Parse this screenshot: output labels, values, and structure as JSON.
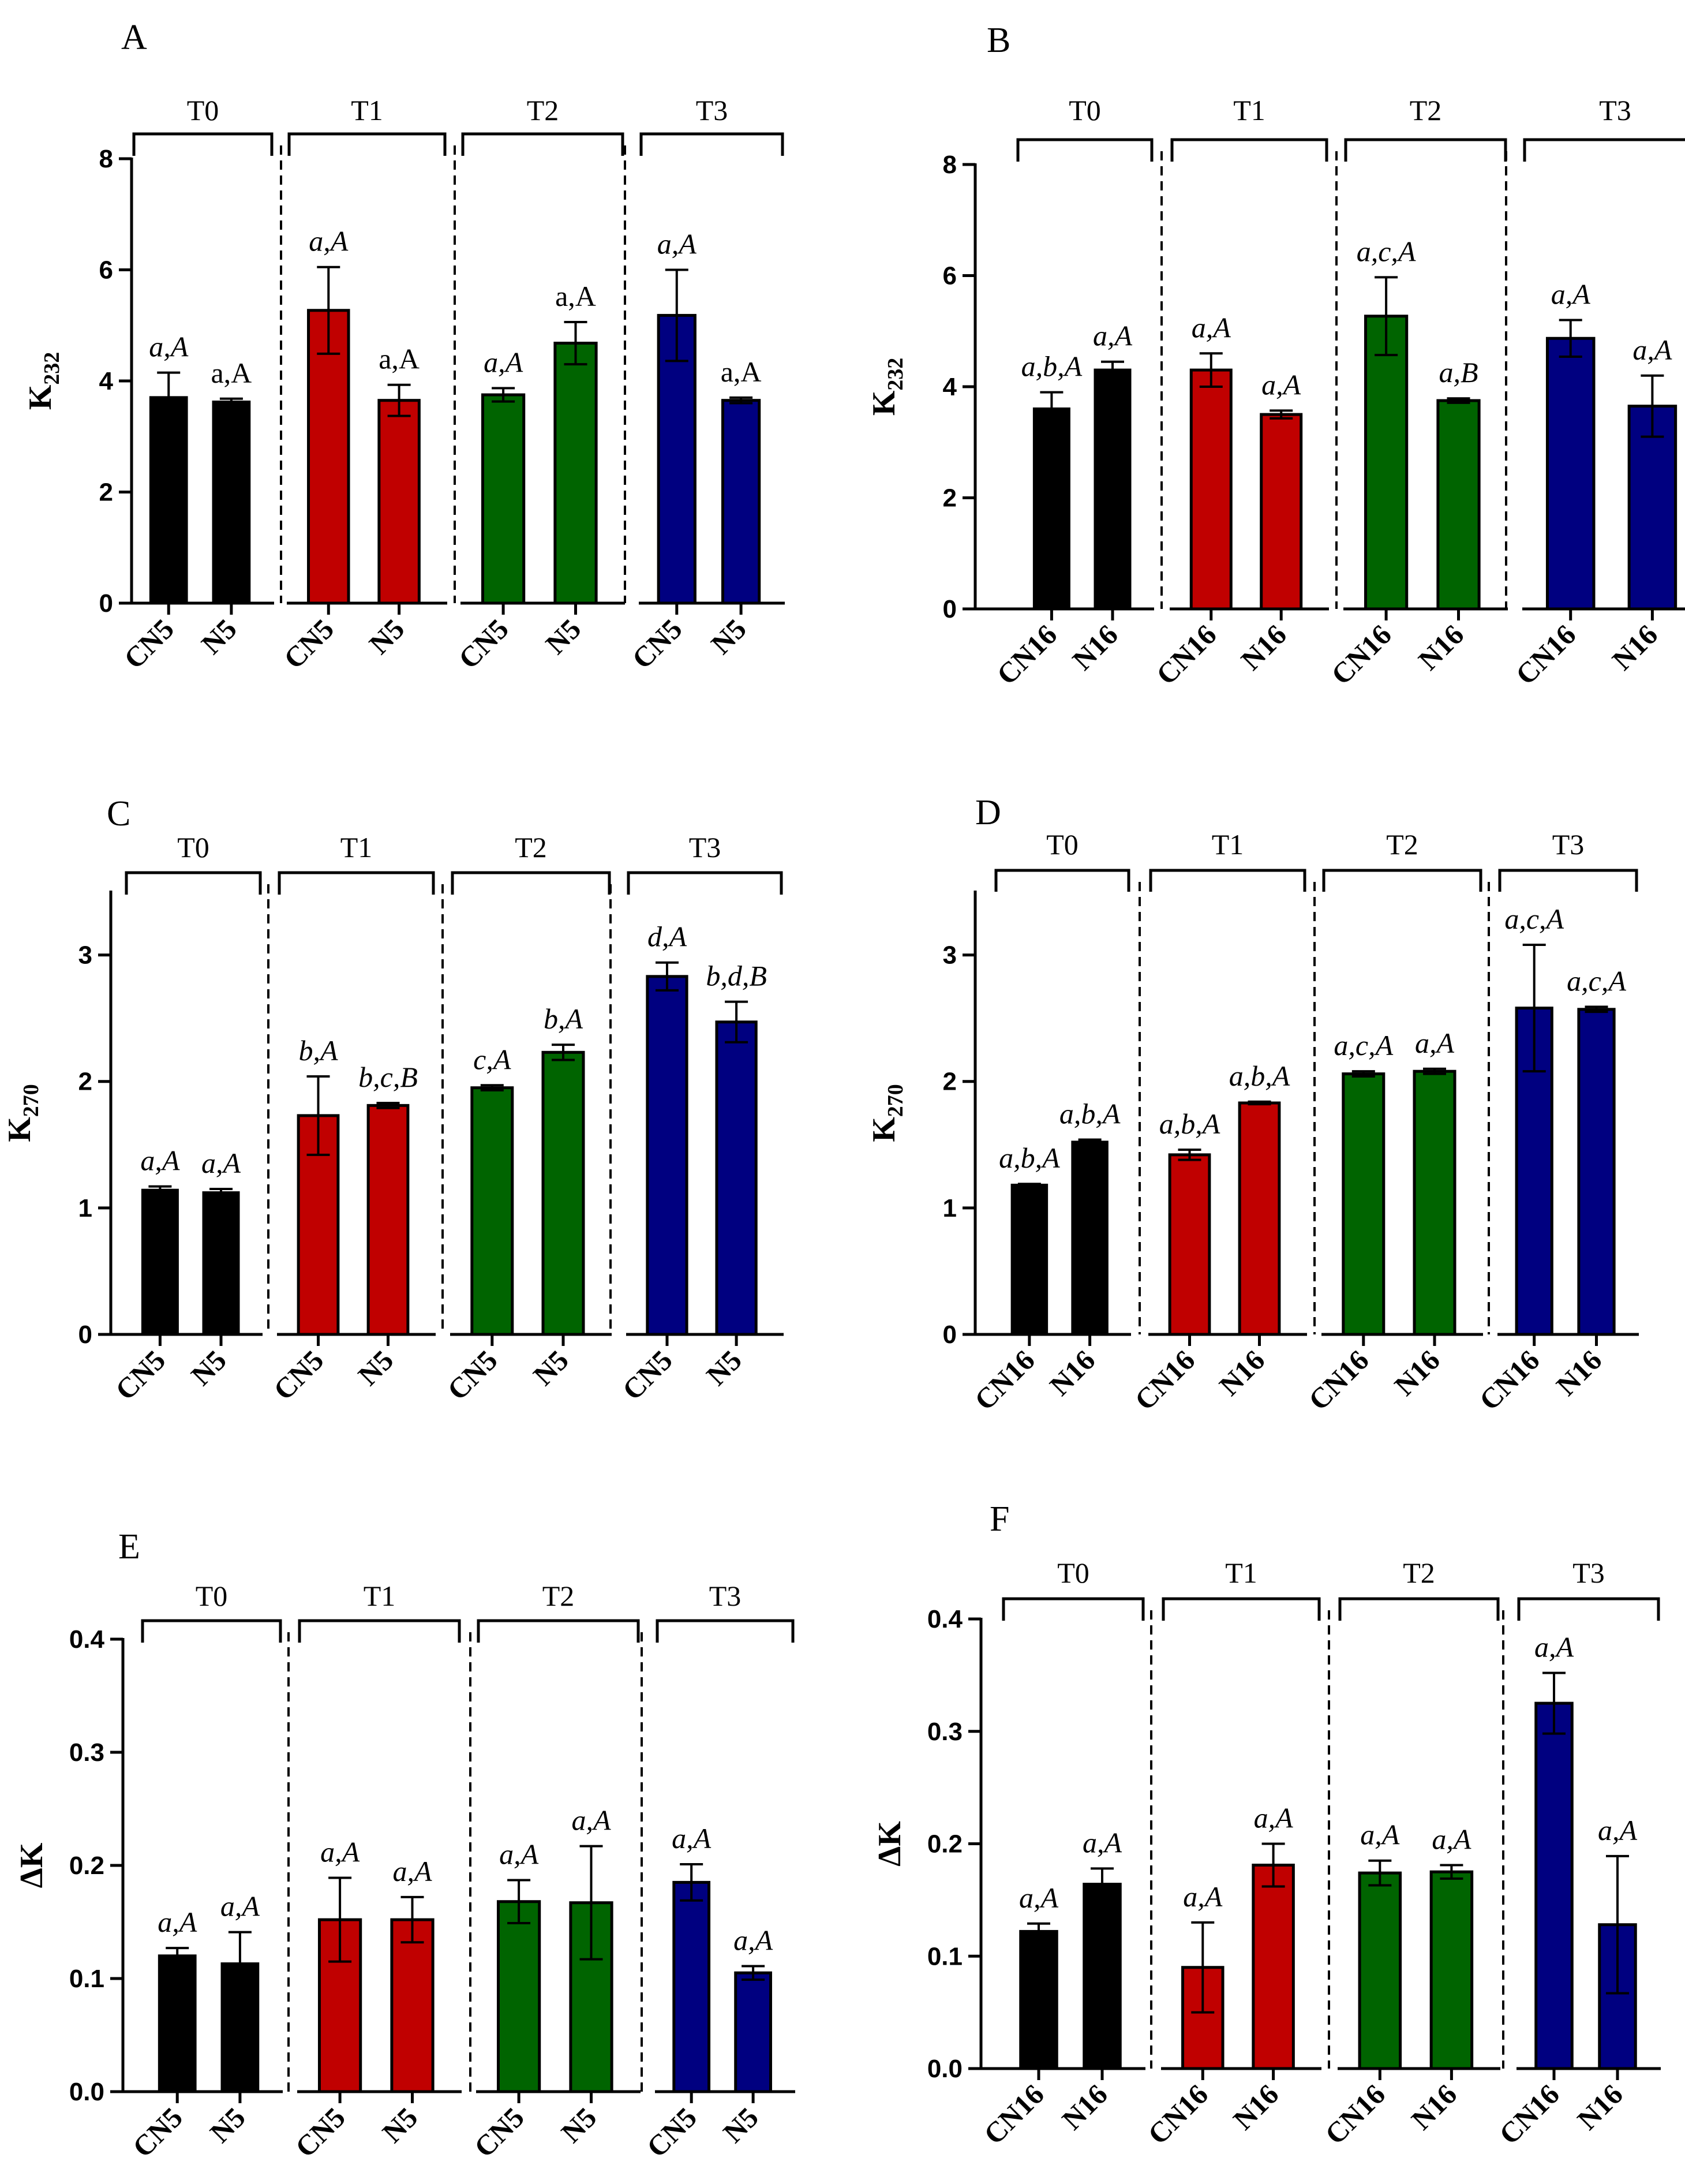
{
  "colors": {
    "T0": "#000000",
    "T1": "#c00000",
    "T2": "#006400",
    "T3": "#000080"
  },
  "chart_data": [
    {
      "panel": "A",
      "type": "bar",
      "ylabel": "K232",
      "ylabel_main": "K",
      "ylabel_sub": "232",
      "ylim": [
        0,
        8
      ],
      "yticks": [
        "0",
        "2",
        "4",
        "6",
        "8"
      ],
      "groups": [
        "T0",
        "T1",
        "T2",
        "T3"
      ],
      "categories": [
        "CN5",
        "N5"
      ],
      "values": [
        [
          3.7,
          3.62
        ],
        [
          5.27,
          3.65
        ],
        [
          3.75,
          4.68
        ],
        [
          5.18,
          3.65
        ]
      ],
      "errors": [
        [
          0.45,
          0.06
        ],
        [
          0.78,
          0.28
        ],
        [
          0.12,
          0.38
        ],
        [
          0.82,
          0.05
        ]
      ],
      "labels": [
        [
          "a,A",
          "a,A"
        ],
        [
          "a,A",
          "a,A"
        ],
        [
          "a,A",
          "a,A"
        ],
        [
          "a,A",
          "a,A"
        ]
      ],
      "label_italic": [
        [
          true,
          false
        ],
        [
          true,
          false
        ],
        [
          true,
          false
        ],
        [
          true,
          false
        ]
      ]
    },
    {
      "panel": "B",
      "type": "bar",
      "ylabel": "K232",
      "ylabel_main": "K",
      "ylabel_sub": "232",
      "ylim": [
        0,
        8
      ],
      "yticks": [
        "0",
        "2",
        "4",
        "6",
        "8"
      ],
      "groups": [
        "T0",
        "T1",
        "T2",
        "T3"
      ],
      "categories": [
        "CN16",
        "N16"
      ],
      "values": [
        [
          3.6,
          4.3
        ],
        [
          4.3,
          3.5
        ],
        [
          5.27,
          3.75
        ],
        [
          4.87,
          3.65
        ]
      ],
      "errors": [
        [
          0.3,
          0.15
        ],
        [
          0.3,
          0.07
        ],
        [
          0.7,
          0.04
        ],
        [
          0.33,
          0.55
        ]
      ],
      "labels": [
        [
          "a,b,A",
          "a,A"
        ],
        [
          "a,A",
          "a,A"
        ],
        [
          "a,c,A",
          "a,B"
        ],
        [
          "a,A",
          "a,A"
        ]
      ],
      "label_italic": [
        [
          true,
          true
        ],
        [
          true,
          true
        ],
        [
          true,
          true
        ],
        [
          true,
          true
        ]
      ]
    },
    {
      "panel": "C",
      "type": "bar",
      "ylabel": "K270",
      "ylabel_main": "K",
      "ylabel_sub": "270",
      "ylim": [
        0,
        3.5
      ],
      "yticks": [
        "0",
        "1",
        "2",
        "3"
      ],
      "groups": [
        "T0",
        "T1",
        "T2",
        "T3"
      ],
      "categories": [
        "CN5",
        "N5"
      ],
      "values": [
        [
          1.14,
          1.12
        ],
        [
          1.73,
          1.81
        ],
        [
          1.95,
          2.23
        ],
        [
          2.83,
          2.47
        ]
      ],
      "errors": [
        [
          0.03,
          0.03
        ],
        [
          0.31,
          0.02
        ],
        [
          0.02,
          0.06
        ],
        [
          0.11,
          0.16
        ]
      ],
      "labels": [
        [
          "a,A",
          "a,A"
        ],
        [
          "b,A",
          "b,c,B"
        ],
        [
          "c,A",
          "b,A"
        ],
        [
          "d,A",
          "b,d,B"
        ]
      ],
      "label_italic": [
        [
          true,
          true
        ],
        [
          true,
          true
        ],
        [
          true,
          true
        ],
        [
          true,
          true
        ]
      ]
    },
    {
      "panel": "D",
      "type": "bar",
      "ylabel": "K270",
      "ylabel_main": "K",
      "ylabel_sub": "270",
      "ylim": [
        0,
        3.5
      ],
      "yticks": [
        "0",
        "1",
        "2",
        "3"
      ],
      "groups": [
        "T0",
        "T1",
        "T2",
        "T3"
      ],
      "categories": [
        "CN16",
        "N16"
      ],
      "values": [
        [
          1.18,
          1.52
        ],
        [
          1.42,
          1.83
        ],
        [
          2.06,
          2.08
        ],
        [
          2.58,
          2.57
        ]
      ],
      "errors": [
        [
          0.01,
          0.02
        ],
        [
          0.04,
          0.01
        ],
        [
          0.02,
          0.02
        ],
        [
          0.5,
          0.02
        ]
      ],
      "labels": [
        [
          "a,b,A",
          "a,b,A"
        ],
        [
          "a,b,A",
          "a,b,A"
        ],
        [
          "a,c,A",
          "a,A"
        ],
        [
          "a,c,A",
          "a,c,A"
        ]
      ],
      "label_italic": [
        [
          true,
          true
        ],
        [
          true,
          true
        ],
        [
          true,
          true
        ],
        [
          true,
          true
        ]
      ]
    },
    {
      "panel": "E",
      "type": "bar",
      "ylabel": "ΔK",
      "ylabel_main": "ΔK",
      "ylabel_sub": "",
      "ylim": [
        0,
        0.4
      ],
      "yticks": [
        "0.0",
        "0.1",
        "0.2",
        "0.3",
        "0.4"
      ],
      "groups": [
        "T0",
        "T1",
        "T2",
        "T3"
      ],
      "categories": [
        "CN5",
        "N5"
      ],
      "values": [
        [
          0.12,
          0.113
        ],
        [
          0.152,
          0.152
        ],
        [
          0.168,
          0.167
        ],
        [
          0.185,
          0.105
        ]
      ],
      "errors": [
        [
          0.007,
          0.028
        ],
        [
          0.037,
          0.02
        ],
        [
          0.019,
          0.05
        ],
        [
          0.016,
          0.006
        ]
      ],
      "labels": [
        [
          "a,A",
          "a,A"
        ],
        [
          "a,A",
          "a,A"
        ],
        [
          "a,A",
          "a,A"
        ],
        [
          "a,A",
          "a,A"
        ]
      ],
      "label_italic": [
        [
          true,
          true
        ],
        [
          true,
          true
        ],
        [
          true,
          true
        ],
        [
          true,
          true
        ]
      ]
    },
    {
      "panel": "F",
      "type": "bar",
      "ylabel": "ΔK",
      "ylabel_main": "ΔK",
      "ylabel_sub": "",
      "ylim": [
        0,
        0.4
      ],
      "yticks": [
        "0.0",
        "0.1",
        "0.2",
        "0.3",
        "0.4"
      ],
      "groups": [
        "T0",
        "T1",
        "T2",
        "T3"
      ],
      "categories": [
        "CN16",
        "N16"
      ],
      "values": [
        [
          0.122,
          0.164
        ],
        [
          0.09,
          0.181
        ],
        [
          0.174,
          0.175
        ],
        [
          0.325,
          0.128
        ]
      ],
      "errors": [
        [
          0.007,
          0.014
        ],
        [
          0.04,
          0.019
        ],
        [
          0.011,
          0.006
        ],
        [
          0.027,
          0.061
        ]
      ],
      "labels": [
        [
          "a,A",
          "a,A"
        ],
        [
          "a,A",
          "a,A"
        ],
        [
          "a,A",
          "a,A"
        ],
        [
          "a,A",
          "a,A"
        ]
      ],
      "label_italic": [
        [
          true,
          true
        ],
        [
          true,
          true
        ],
        [
          true,
          true
        ],
        [
          true,
          true
        ]
      ]
    }
  ]
}
